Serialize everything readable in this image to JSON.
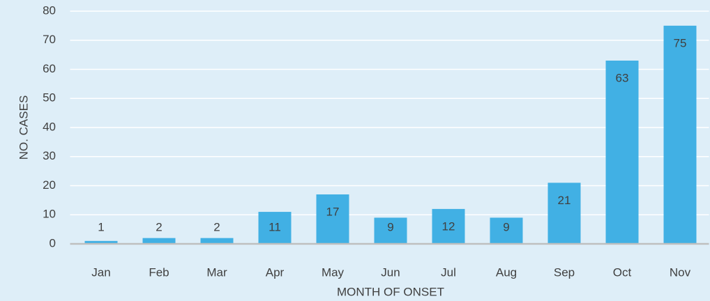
{
  "chart_data": {
    "type": "bar",
    "categories": [
      "Jan",
      "Feb",
      "Mar",
      "Apr",
      "May",
      "Jun",
      "Jul",
      "Aug",
      "Sep",
      "Oct",
      "Nov"
    ],
    "values": [
      1,
      2,
      2,
      11,
      17,
      9,
      12,
      9,
      21,
      63,
      75
    ],
    "color": "#41b0e4",
    "x_label": "MONTH OF ONSET",
    "y_label": "NO. CASES",
    "ylim": [
      0,
      80
    ],
    "yticks": [
      0,
      10,
      20,
      30,
      40,
      50,
      60,
      70,
      80
    ],
    "grid": true
  }
}
